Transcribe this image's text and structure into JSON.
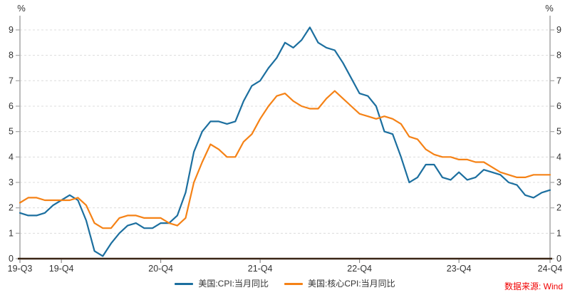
{
  "chart_data": {
    "type": "line",
    "title": "",
    "unit_label_left": "%",
    "unit_label_right": "%",
    "frequency": "monthly",
    "start_month": "2019-07",
    "end_month": "2024-11",
    "ylim": [
      0,
      9.56
    ],
    "y_ticks": [
      0,
      1,
      2,
      3,
      4,
      5,
      6,
      7,
      8,
      9
    ],
    "grid": "horizontal-dashed",
    "legend_position": "bottom-center",
    "x_tick_labels": [
      {
        "label": "19-Q3",
        "month_index": 0
      },
      {
        "label": "19-Q4",
        "month_index": 5
      },
      {
        "label": "20-Q4",
        "month_index": 17
      },
      {
        "label": "21-Q4",
        "month_index": 29
      },
      {
        "label": "22-Q4",
        "month_index": 41
      },
      {
        "label": "23-Q4",
        "month_index": 53
      },
      {
        "label": "24-Q4",
        "month_index": 64
      }
    ],
    "series": [
      {
        "name": "美国:CPI:当月同比",
        "color": "#1c6f9f",
        "values": [
          1.8,
          1.7,
          1.7,
          1.8,
          2.1,
          2.3,
          2.5,
          2.3,
          1.5,
          0.3,
          0.1,
          0.6,
          1.0,
          1.3,
          1.4,
          1.2,
          1.2,
          1.4,
          1.4,
          1.7,
          2.6,
          4.2,
          5.0,
          5.4,
          5.4,
          5.3,
          5.4,
          6.2,
          6.8,
          7.0,
          7.5,
          7.9,
          8.5,
          8.3,
          8.6,
          9.1,
          8.5,
          8.3,
          8.2,
          7.7,
          7.1,
          6.5,
          6.4,
          6.0,
          5.0,
          4.9,
          4.0,
          3.0,
          3.2,
          3.7,
          3.7,
          3.2,
          3.1,
          3.4,
          3.1,
          3.2,
          3.5,
          3.4,
          3.3,
          3.0,
          2.9,
          2.5,
          2.4,
          2.6,
          2.7
        ]
      },
      {
        "name": "美国:核心CPI:当月同比",
        "color": "#f58216",
        "values": [
          2.2,
          2.4,
          2.4,
          2.3,
          2.3,
          2.3,
          2.3,
          2.4,
          2.1,
          1.4,
          1.2,
          1.2,
          1.6,
          1.7,
          1.7,
          1.6,
          1.6,
          1.6,
          1.4,
          1.3,
          1.6,
          3.0,
          3.8,
          4.5,
          4.3,
          4.0,
          4.0,
          4.6,
          4.9,
          5.5,
          6.0,
          6.4,
          6.5,
          6.2,
          6.0,
          5.9,
          5.9,
          6.3,
          6.6,
          6.3,
          6.0,
          5.7,
          5.6,
          5.5,
          5.6,
          5.5,
          5.3,
          4.8,
          4.7,
          4.3,
          4.1,
          4.0,
          4.0,
          3.9,
          3.9,
          3.8,
          3.8,
          3.6,
          3.4,
          3.3,
          3.2,
          3.2,
          3.3,
          3.3,
          3.3
        ]
      }
    ],
    "source_note": "数据来源: Wind",
    "colors": {
      "source_text": "#f00000",
      "side_axis": "#a6a6a6",
      "bottom_axis": "#3a2515",
      "gridline": "#dcdcdc",
      "tick_label": "#333333",
      "x_tick_mark": "#737373"
    }
  }
}
